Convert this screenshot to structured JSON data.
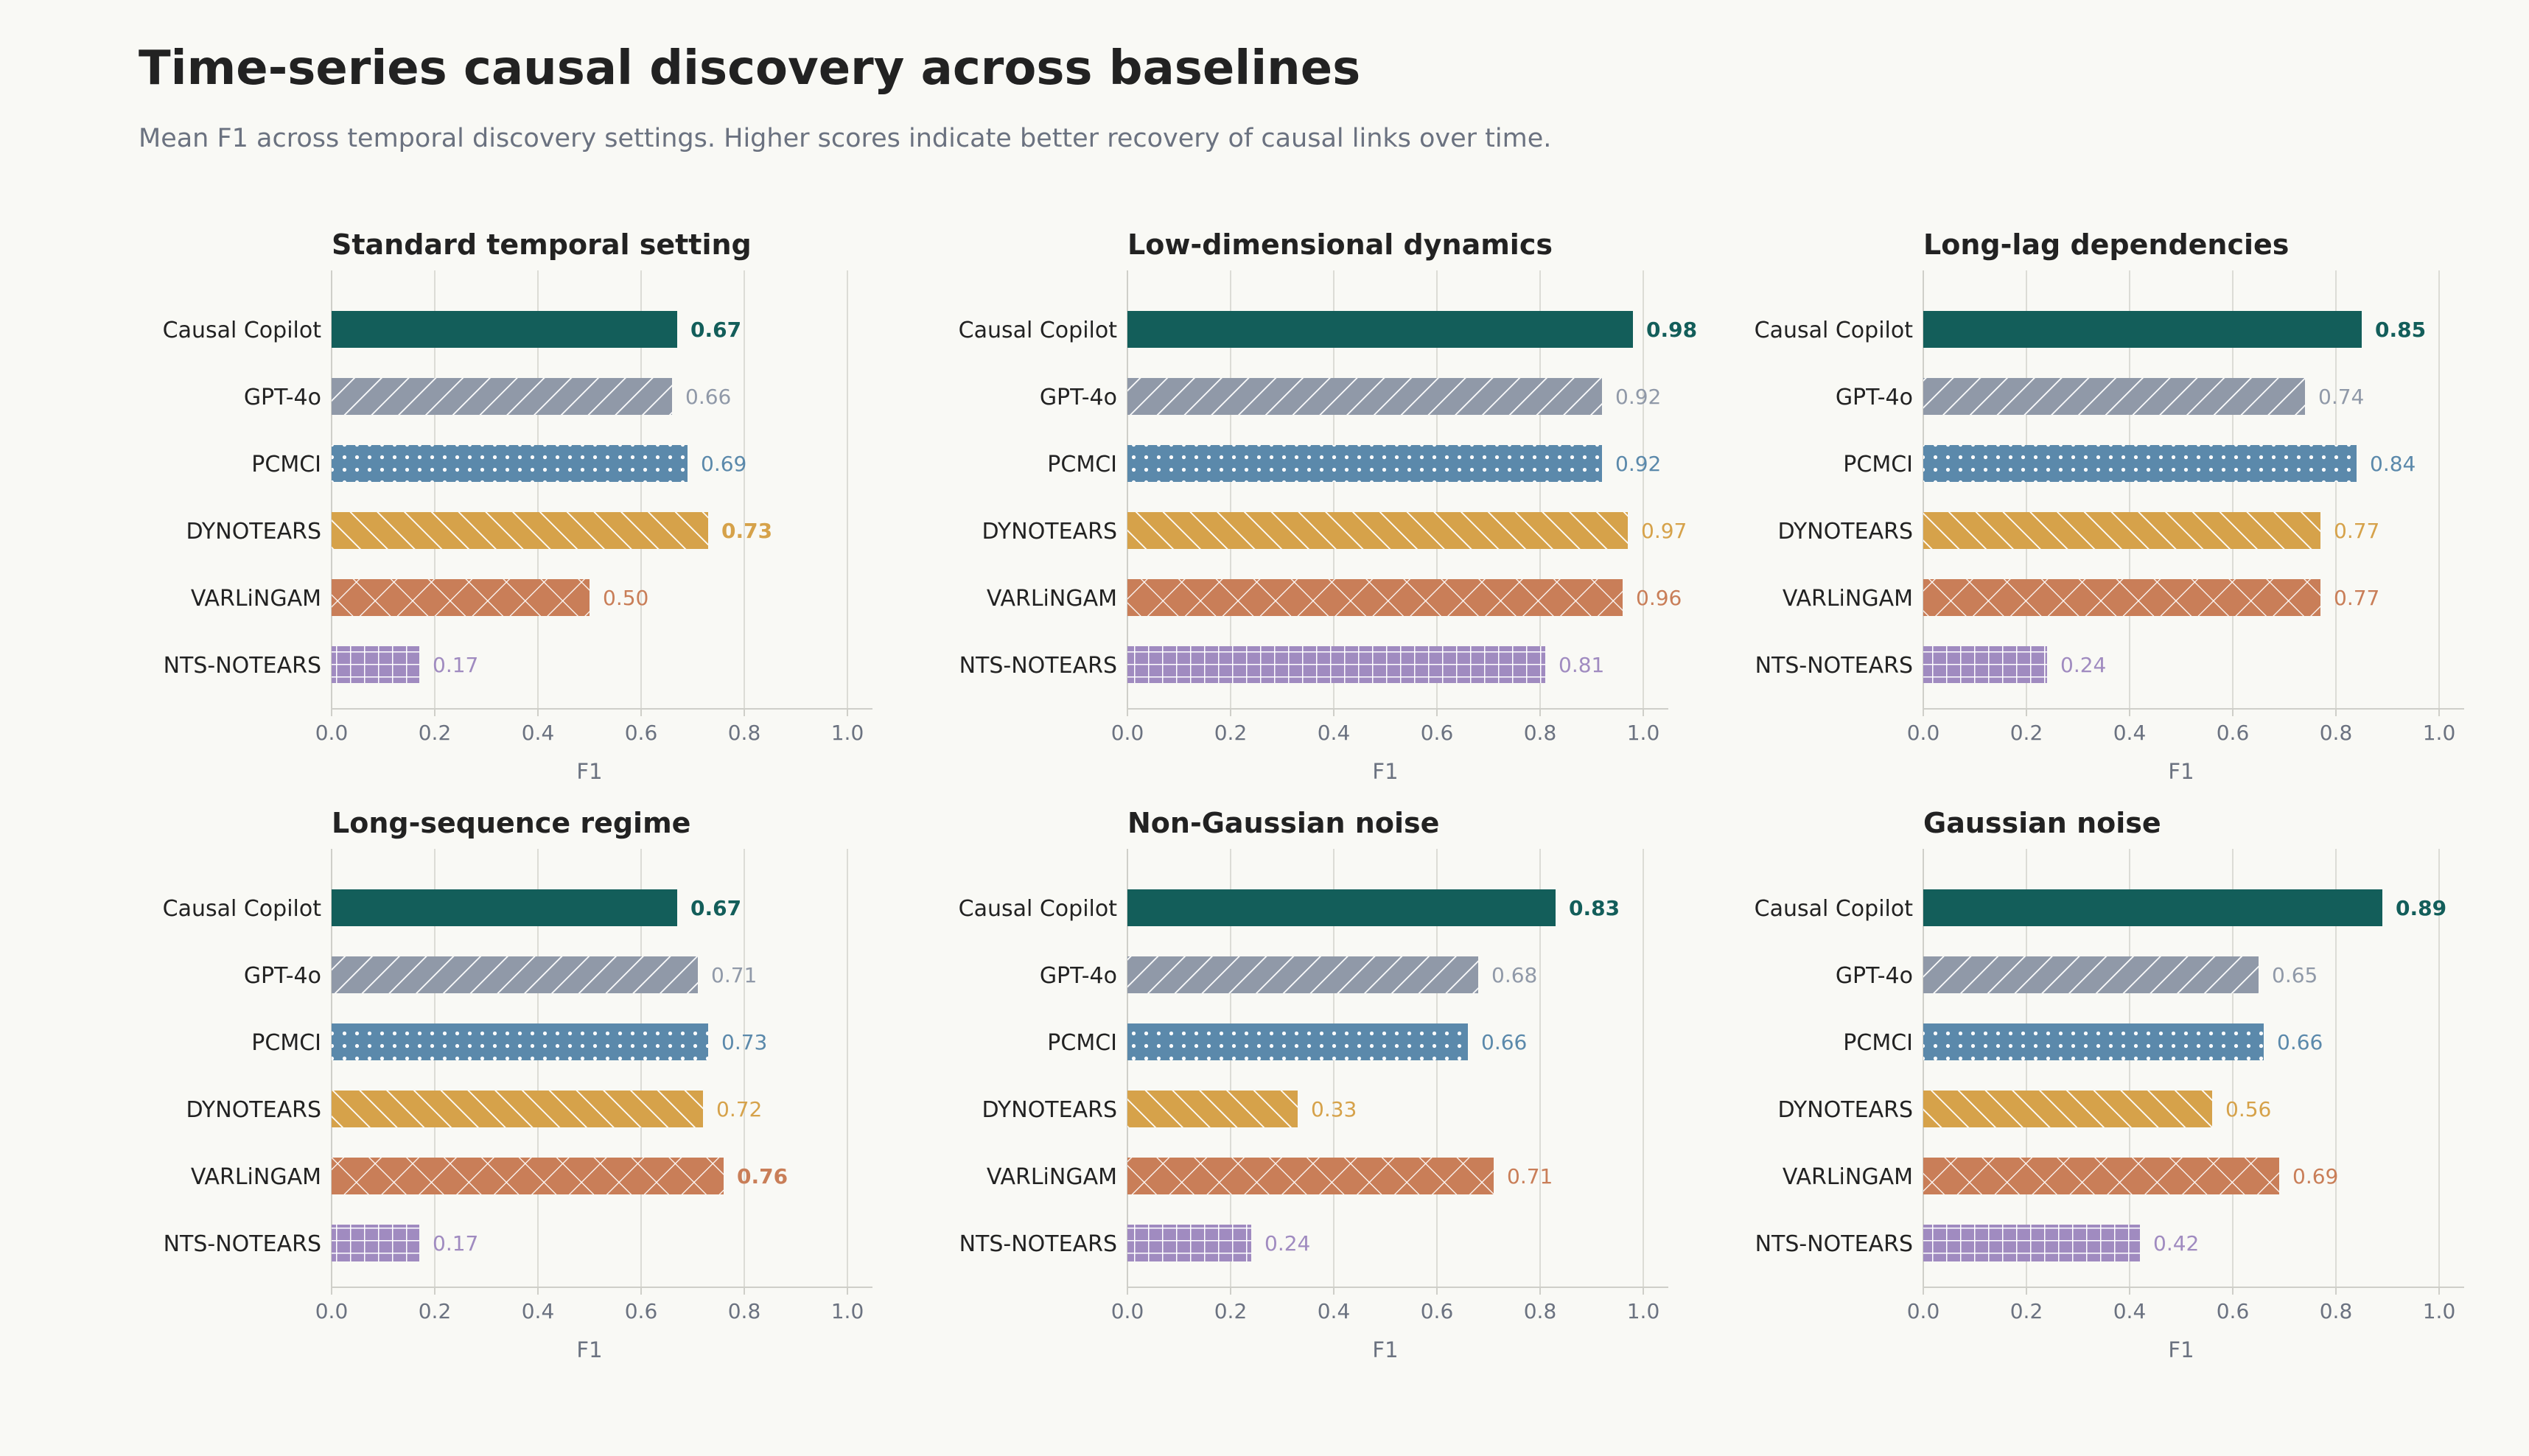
{
  "title": "Time-series causal discovery across baselines",
  "subtitle": "Mean F1 across temporal discovery settings. Higher scores indicate better recovery of causal links over time.",
  "colors": {
    "Causal Copilot": "#135e5a",
    "GPT-4o": "#9099a8",
    "PCMCI": "#5b89ab",
    "DYNOTEARS": "#d6a24a",
    "VARLiNGAM": "#c97e58",
    "NTS-NOTEARS": "#a08bc0"
  },
  "patterns": {
    "Causal Copilot": "solid",
    "GPT-4o": "diagonal-forward",
    "PCMCI": "dots",
    "DYNOTEARS": "diagonal-back",
    "VARLiNGAM": "crosshatch",
    "NTS-NOTEARS": "grid"
  },
  "chart_data": [
    {
      "type": "bar",
      "orientation": "horizontal",
      "title": "Standard temporal setting",
      "xlabel": "F1",
      "xlim": [
        0,
        1.0
      ],
      "xticks": [
        "0.0",
        "0.2",
        "0.4",
        "0.6",
        "0.8",
        "1.0"
      ],
      "grid": "vertical",
      "categories": [
        "Causal Copilot",
        "GPT-4o",
        "PCMCI",
        "DYNOTEARS",
        "VARLiNGAM",
        "NTS-NOTEARS"
      ],
      "values": [
        0.67,
        0.66,
        0.69,
        0.73,
        0.5,
        0.17
      ],
      "value_labels": [
        "0.67",
        "0.66",
        "0.69",
        "0.73",
        "0.50",
        "0.17"
      ],
      "bold": [
        true,
        false,
        false,
        true,
        false,
        false
      ]
    },
    {
      "type": "bar",
      "orientation": "horizontal",
      "title": "Low-dimensional dynamics",
      "xlabel": "F1",
      "xlim": [
        0,
        1.0
      ],
      "xticks": [
        "0.0",
        "0.2",
        "0.4",
        "0.6",
        "0.8",
        "1.0"
      ],
      "grid": "vertical",
      "categories": [
        "Causal Copilot",
        "GPT-4o",
        "PCMCI",
        "DYNOTEARS",
        "VARLiNGAM",
        "NTS-NOTEARS"
      ],
      "values": [
        0.98,
        0.92,
        0.92,
        0.97,
        0.96,
        0.81
      ],
      "value_labels": [
        "0.98",
        "0.92",
        "0.92",
        "0.97",
        "0.96",
        "0.81"
      ],
      "bold": [
        true,
        false,
        false,
        false,
        false,
        false
      ]
    },
    {
      "type": "bar",
      "orientation": "horizontal",
      "title": "Long-lag dependencies",
      "xlabel": "F1",
      "xlim": [
        0,
        1.0
      ],
      "xticks": [
        "0.0",
        "0.2",
        "0.4",
        "0.6",
        "0.8",
        "1.0"
      ],
      "grid": "vertical",
      "categories": [
        "Causal Copilot",
        "GPT-4o",
        "PCMCI",
        "DYNOTEARS",
        "VARLiNGAM",
        "NTS-NOTEARS"
      ],
      "values": [
        0.85,
        0.74,
        0.84,
        0.77,
        0.77,
        0.24
      ],
      "value_labels": [
        "0.85",
        "0.74",
        "0.84",
        "0.77",
        "0.77",
        "0.24"
      ],
      "bold": [
        true,
        false,
        false,
        false,
        false,
        false
      ]
    },
    {
      "type": "bar",
      "orientation": "horizontal",
      "title": "Long-sequence regime",
      "xlabel": "F1",
      "xlim": [
        0,
        1.0
      ],
      "xticks": [
        "0.0",
        "0.2",
        "0.4",
        "0.6",
        "0.8",
        "1.0"
      ],
      "grid": "vertical",
      "categories": [
        "Causal Copilot",
        "GPT-4o",
        "PCMCI",
        "DYNOTEARS",
        "VARLiNGAM",
        "NTS-NOTEARS"
      ],
      "values": [
        0.67,
        0.71,
        0.73,
        0.72,
        0.76,
        0.17
      ],
      "value_labels": [
        "0.67",
        "0.71",
        "0.73",
        "0.72",
        "0.76",
        "0.17"
      ],
      "bold": [
        true,
        false,
        false,
        false,
        true,
        false
      ]
    },
    {
      "type": "bar",
      "orientation": "horizontal",
      "title": "Non-Gaussian noise",
      "xlabel": "F1",
      "xlim": [
        0,
        1.0
      ],
      "xticks": [
        "0.0",
        "0.2",
        "0.4",
        "0.6",
        "0.8",
        "1.0"
      ],
      "grid": "vertical",
      "categories": [
        "Causal Copilot",
        "GPT-4o",
        "PCMCI",
        "DYNOTEARS",
        "VARLiNGAM",
        "NTS-NOTEARS"
      ],
      "values": [
        0.83,
        0.68,
        0.66,
        0.33,
        0.71,
        0.24
      ],
      "value_labels": [
        "0.83",
        "0.68",
        "0.66",
        "0.33",
        "0.71",
        "0.24"
      ],
      "bold": [
        true,
        false,
        false,
        false,
        false,
        false
      ]
    },
    {
      "type": "bar",
      "orientation": "horizontal",
      "title": "Gaussian noise",
      "xlabel": "F1",
      "xlim": [
        0,
        1.0
      ],
      "xticks": [
        "0.0",
        "0.2",
        "0.4",
        "0.6",
        "0.8",
        "1.0"
      ],
      "grid": "vertical",
      "categories": [
        "Causal Copilot",
        "GPT-4o",
        "PCMCI",
        "DYNOTEARS",
        "VARLiNGAM",
        "NTS-NOTEARS"
      ],
      "values": [
        0.89,
        0.65,
        0.66,
        0.56,
        0.69,
        0.42
      ],
      "value_labels": [
        "0.89",
        "0.65",
        "0.66",
        "0.56",
        "0.69",
        "0.42"
      ],
      "bold": [
        true,
        false,
        false,
        false,
        false,
        false
      ]
    }
  ]
}
